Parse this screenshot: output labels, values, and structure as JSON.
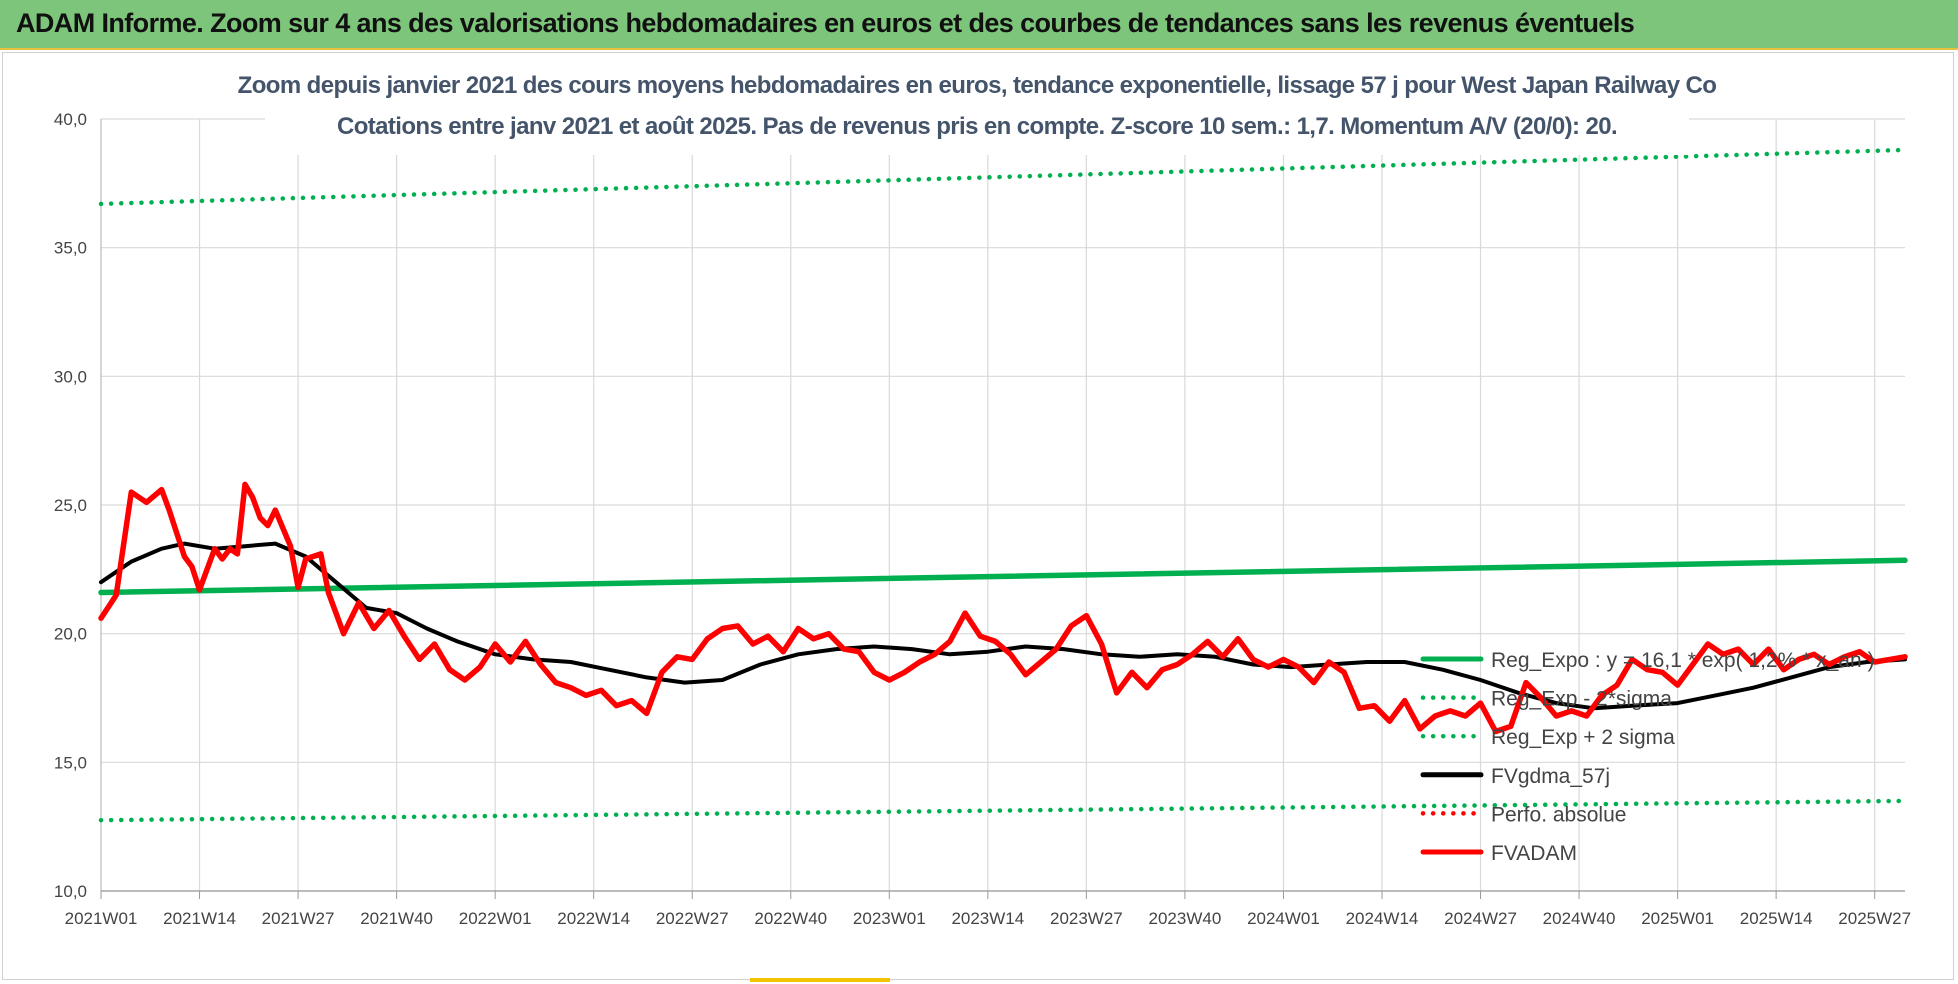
{
  "banner": {
    "title": "ADAM Informe. Zoom sur 4 ans des valorisations hebdomadaires en euros et des courbes de tendances sans les revenus éventuels"
  },
  "colors": {
    "banner_bg": "#7dc57a",
    "regression": "#00b050",
    "fv_gdma": "#000000",
    "fv_adam": "#ff0000",
    "perfo": "#ff0000",
    "grid": "#d9d9d9",
    "title_text": "#44546a"
  },
  "chart_data": {
    "type": "line",
    "title": "Zoom depuis janvier 2021 des cours moyens hebdomadaires en euros, tendance exponentielle, lissage 57 j pour West Japan Railway Co",
    "subtitle": "Cotations entre janv 2021 et août 2025.  Pas de revenus pris en compte. Z-score 10 sem.: 1,7. Momentum A/V (20/0): 20.",
    "xlabel": "",
    "ylabel": "",
    "ylim": [
      10,
      40
    ],
    "y_ticks": [
      "10,0",
      "15,0",
      "20,0",
      "25,0",
      "30,0",
      "35,0",
      "40,0"
    ],
    "x_range": [
      "2021W01",
      "2025W31"
    ],
    "x_tick_labels": [
      "2021W01",
      "2021W14",
      "2021W27",
      "2021W40",
      "2022W01",
      "2022W14",
      "2022W27",
      "2022W40",
      "2023W01",
      "2023W14",
      "2023W27",
      "2023W40",
      "2024W01",
      "2024W14",
      "2024W27",
      "2024W40",
      "2025W01",
      "2025W14",
      "2025W27"
    ],
    "grid": true,
    "legend_position": "right",
    "series": [
      {
        "name": "Reg_Expo : y = 16,1 * exp( 1,2% * x_an )",
        "style": "solid",
        "color": "#00b050",
        "x": [
          "2021W01",
          "2025W31"
        ],
        "values": [
          21.6,
          22.85
        ]
      },
      {
        "name": "Reg_Exp - 2*sigma",
        "style": "dotted",
        "color": "#00b050",
        "x": [
          "2021W01",
          "2025W31"
        ],
        "values": [
          12.75,
          13.5
        ]
      },
      {
        "name": "Reg_Exp + 2 sigma",
        "style": "dotted",
        "color": "#00b050",
        "x": [
          "2021W01",
          "2025W31"
        ],
        "values": [
          36.7,
          38.8
        ]
      },
      {
        "name": "FVgdma_57j",
        "style": "solid",
        "color": "#000000",
        "x": [
          "2021W01",
          "2021W05",
          "2021W09",
          "2021W12",
          "2021W16",
          "2021W20",
          "2021W24",
          "2021W28",
          "2021W32",
          "2021W36",
          "2021W40",
          "2021W44",
          "2021W48",
          "2022W01",
          "2022W06",
          "2022W11",
          "2022W16",
          "2022W21",
          "2022W26",
          "2022W31",
          "2022W36",
          "2022W41",
          "2022W46",
          "2022W51",
          "2023W04",
          "2023W09",
          "2023W14",
          "2023W19",
          "2023W24",
          "2023W29",
          "2023W34",
          "2023W39",
          "2023W44",
          "2023W49",
          "2024W02",
          "2024W07",
          "2024W12",
          "2024W17",
          "2024W22",
          "2024W27",
          "2024W32",
          "2024W37",
          "2024W42",
          "2024W47",
          "2025W01",
          "2025W06",
          "2025W11",
          "2025W16",
          "2025W21",
          "2025W26",
          "2025W31"
        ],
        "values": [
          22.0,
          22.8,
          23.3,
          23.5,
          23.3,
          23.4,
          23.5,
          23.0,
          22.0,
          21.0,
          20.8,
          20.2,
          19.7,
          19.2,
          19.0,
          18.9,
          18.6,
          18.3,
          18.1,
          18.2,
          18.8,
          19.2,
          19.4,
          19.5,
          19.4,
          19.2,
          19.3,
          19.5,
          19.4,
          19.2,
          19.1,
          19.2,
          19.1,
          18.8,
          18.7,
          18.8,
          18.9,
          18.9,
          18.6,
          18.2,
          17.7,
          17.3,
          17.1,
          17.2,
          17.3,
          17.6,
          17.9,
          18.3,
          18.7,
          18.9,
          19.0
        ]
      },
      {
        "name": "Perfo. absolue",
        "style": "dotted",
        "color": "#ff0000",
        "x": [],
        "values": []
      },
      {
        "name": "FVADAM",
        "style": "solid",
        "color": "#ff0000",
        "x": [
          "2021W01",
          "2021W03",
          "2021W05",
          "2021W07",
          "2021W09",
          "2021W10",
          "2021W11",
          "2021W12",
          "2021W13",
          "2021W14",
          "2021W16",
          "2021W17",
          "2021W18",
          "2021W19",
          "2021W20",
          "2021W21",
          "2021W22",
          "2021W23",
          "2021W24",
          "2021W26",
          "2021W27",
          "2021W28",
          "2021W30",
          "2021W31",
          "2021W33",
          "2021W35",
          "2021W37",
          "2021W39",
          "2021W41",
          "2021W43",
          "2021W45",
          "2021W47",
          "2021W49",
          "2021W51",
          "2022W01",
          "2022W03",
          "2022W05",
          "2022W07",
          "2022W09",
          "2022W11",
          "2022W13",
          "2022W15",
          "2022W17",
          "2022W19",
          "2022W21",
          "2022W23",
          "2022W25",
          "2022W27",
          "2022W29",
          "2022W31",
          "2022W33",
          "2022W35",
          "2022W37",
          "2022W39",
          "2022W41",
          "2022W43",
          "2022W45",
          "2022W47",
          "2022W49",
          "2022W51",
          "2023W01",
          "2023W03",
          "2023W05",
          "2023W07",
          "2023W09",
          "2023W11",
          "2023W13",
          "2023W15",
          "2023W17",
          "2023W19",
          "2023W21",
          "2023W23",
          "2023W25",
          "2023W27",
          "2023W29",
          "2023W31",
          "2023W33",
          "2023W35",
          "2023W37",
          "2023W39",
          "2023W41",
          "2023W43",
          "2023W45",
          "2023W47",
          "2023W49",
          "2023W51",
          "2024W01",
          "2024W03",
          "2024W05",
          "2024W07",
          "2024W09",
          "2024W11",
          "2024W13",
          "2024W15",
          "2024W17",
          "2024W19",
          "2024W21",
          "2024W23",
          "2024W25",
          "2024W27",
          "2024W29",
          "2024W31",
          "2024W33",
          "2024W35",
          "2024W37",
          "2024W39",
          "2024W41",
          "2024W43",
          "2024W45",
          "2024W47",
          "2024W49",
          "2024W51",
          "2025W01",
          "2025W03",
          "2025W05",
          "2025W07",
          "2025W09",
          "2025W11",
          "2025W13",
          "2025W15",
          "2025W17",
          "2025W19",
          "2025W21",
          "2025W23",
          "2025W25",
          "2025W27",
          "2025W29",
          "2025W31"
        ],
        "values": [
          20.6,
          21.5,
          25.5,
          25.1,
          25.6,
          24.8,
          23.9,
          23.0,
          22.6,
          21.7,
          23.3,
          22.9,
          23.3,
          23.1,
          25.8,
          25.3,
          24.5,
          24.2,
          24.8,
          23.4,
          21.8,
          22.9,
          23.1,
          21.6,
          20.0,
          21.2,
          20.2,
          20.9,
          19.9,
          19.0,
          19.6,
          18.6,
          18.2,
          18.7,
          19.6,
          18.9,
          19.7,
          18.8,
          18.1,
          17.9,
          17.6,
          17.8,
          17.2,
          17.4,
          16.9,
          18.5,
          19.1,
          19.0,
          19.8,
          20.2,
          20.3,
          19.6,
          19.9,
          19.3,
          20.2,
          19.8,
          20.0,
          19.4,
          19.3,
          18.5,
          18.2,
          18.5,
          18.9,
          19.2,
          19.7,
          20.8,
          19.9,
          19.7,
          19.2,
          18.4,
          18.9,
          19.4,
          20.3,
          20.7,
          19.6,
          17.7,
          18.5,
          17.9,
          18.6,
          18.8,
          19.2,
          19.7,
          19.1,
          19.8,
          19.0,
          18.7,
          19.0,
          18.7,
          18.1,
          18.9,
          18.5,
          17.1,
          17.2,
          16.6,
          17.4,
          16.3,
          16.8,
          17.0,
          16.8,
          17.3,
          16.2,
          16.4,
          18.1,
          17.5,
          16.8,
          17.0,
          16.8,
          17.6,
          18.0,
          19.0,
          18.6,
          18.5,
          18.0,
          18.8,
          19.6,
          19.2,
          19.4,
          18.8,
          19.4,
          18.6,
          19.0,
          19.2,
          18.8,
          19.1,
          19.3,
          18.9,
          19.0,
          19.1
        ]
      }
    ]
  }
}
